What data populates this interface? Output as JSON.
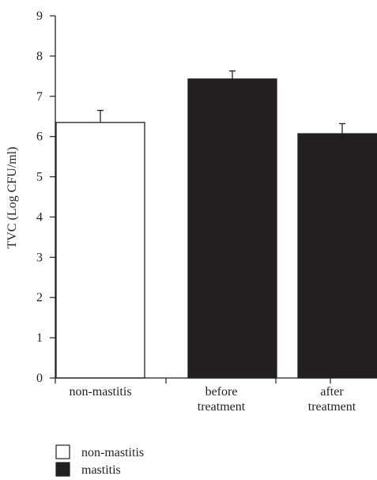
{
  "chart_data": {
    "type": "bar",
    "title": "",
    "xlabel": "",
    "ylabel": "TVC (Log CFU/ml)",
    "ylim": [
      0,
      9
    ],
    "yticks": [
      0,
      1,
      2,
      3,
      4,
      5,
      6,
      7,
      8,
      9
    ],
    "grid": false,
    "categories": [
      [
        "non-mastitis"
      ],
      [
        "before",
        "treatment"
      ],
      [
        "after",
        "treatment"
      ]
    ],
    "values": [
      6.35,
      7.43,
      6.07
    ],
    "errors": [
      0.3,
      0.2,
      0.25
    ],
    "bar_groups": [
      "non-mastitis",
      "mastitis",
      "mastitis"
    ],
    "legend": {
      "placement": "bottom-left",
      "entries": [
        {
          "label": "non-mastitis",
          "fill": "#ffffff"
        },
        {
          "label": "mastitis",
          "fill": "#231f20"
        }
      ]
    },
    "colors": {
      "mastitis": "#231f20",
      "non-mastitis": "#ffffff",
      "stroke": "#231f20"
    }
  }
}
